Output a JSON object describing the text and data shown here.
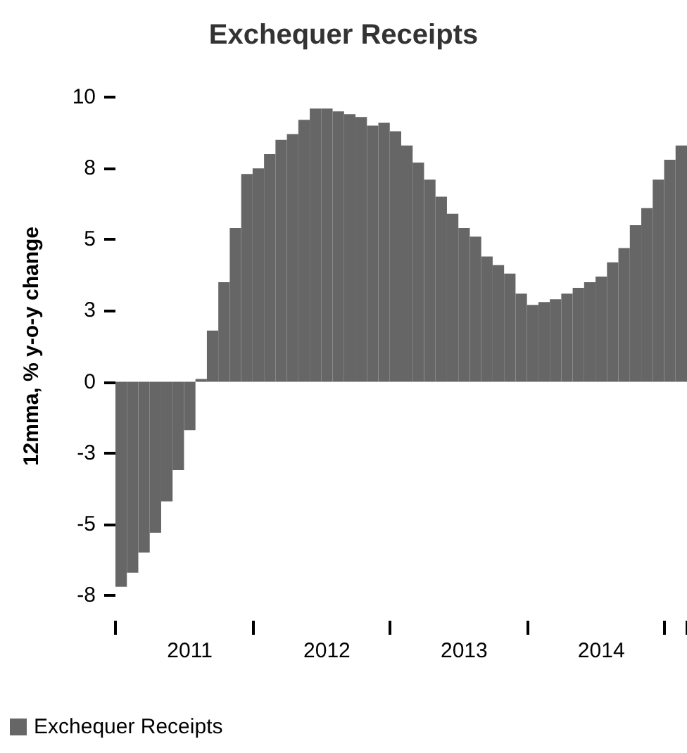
{
  "chart_data": {
    "type": "bar",
    "title": "Exchequer Receipts",
    "ylabel": "12mma, % y-o-y change",
    "categories": [
      null,
      null,
      null,
      null,
      null,
      null,
      "2011",
      null,
      null,
      null,
      null,
      null,
      null,
      null,
      null,
      null,
      null,
      null,
      "2012",
      null,
      null,
      null,
      null,
      null,
      null,
      null,
      null,
      null,
      null,
      null,
      "2013",
      null,
      null,
      null,
      null,
      null,
      null,
      null,
      null,
      null,
      null,
      null,
      "2014",
      null,
      null,
      null,
      null,
      null,
      null,
      null
    ],
    "series": [
      {
        "name": "Exchequer Receipts",
        "color": "#666666",
        "values": [
          -7.2,
          -6.7,
          -6.0,
          -5.3,
          -4.2,
          -3.1,
          -1.7,
          0.1,
          1.8,
          3.5,
          5.4,
          7.3,
          7.5,
          8.0,
          8.5,
          8.7,
          9.2,
          9.6,
          9.6,
          9.5,
          9.4,
          9.3,
          9.0,
          9.1,
          8.8,
          8.3,
          7.7,
          7.1,
          6.5,
          5.9,
          5.4,
          5.1,
          4.4,
          4.1,
          3.8,
          3.1,
          2.7,
          2.8,
          2.9,
          3.1,
          3.3,
          3.5,
          3.7,
          4.2,
          4.7,
          5.5,
          6.1,
          7.1,
          7.8,
          8.3
        ]
      }
    ],
    "ylim": [
      -7.5,
      10
    ],
    "yticks": [
      {
        "value": -7.5,
        "label": "-8"
      },
      {
        "value": -5,
        "label": "-5"
      },
      {
        "value": -2.5,
        "label": "-3"
      },
      0,
      {
        "value": 2.5,
        "label": "3"
      },
      5,
      {
        "value": 7.5,
        "label": "8"
      },
      10
    ],
    "grid": false,
    "legend": "bottom left"
  }
}
